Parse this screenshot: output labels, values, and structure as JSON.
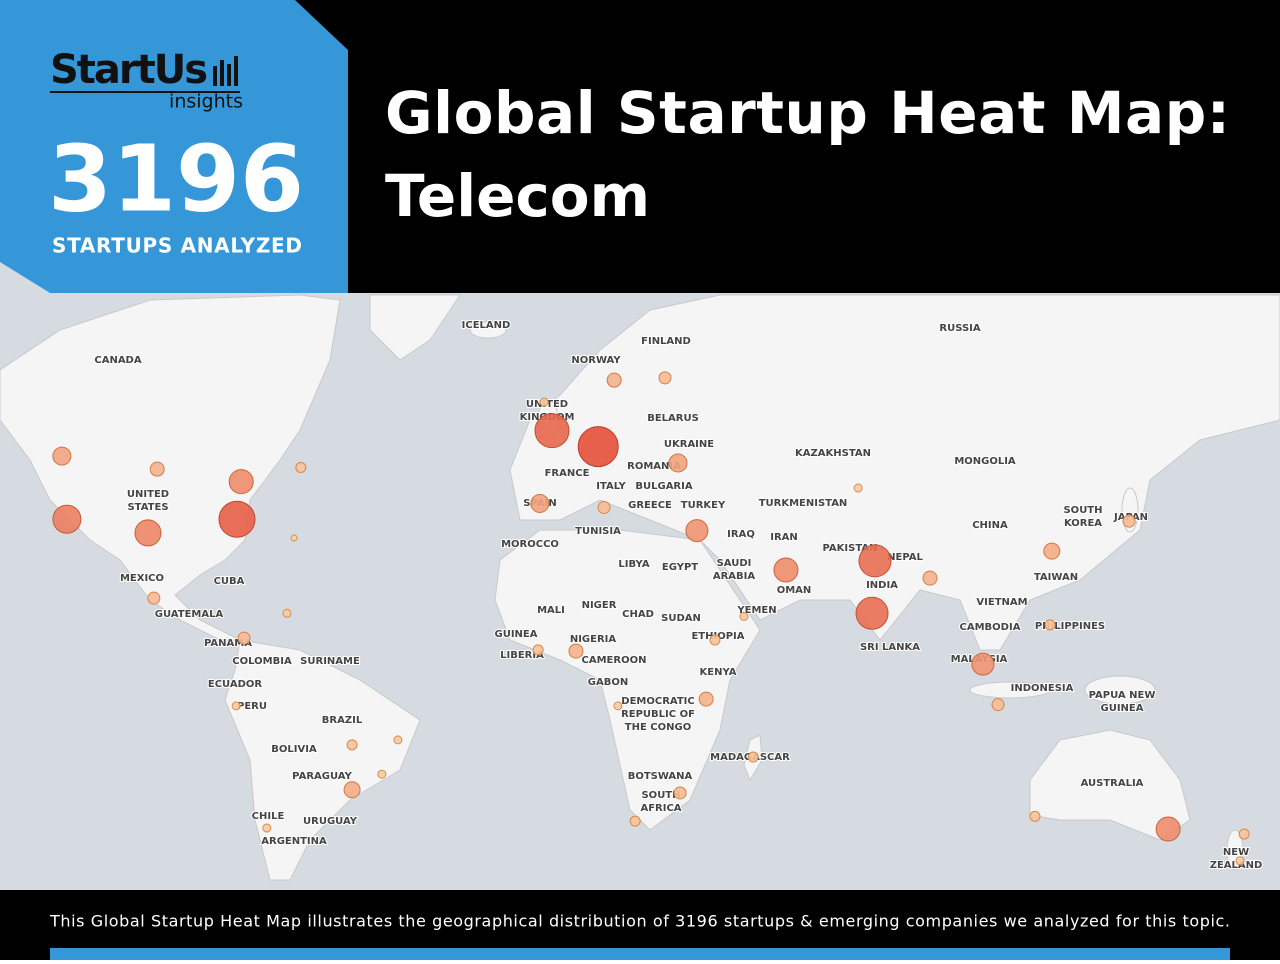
{
  "header": {
    "logo": "StartUs",
    "logo_sub": "insights",
    "count": "3196",
    "count_label": "STARTUPS ANALYZED",
    "title_lines": [
      "Global Startup Heat Map:",
      "Telecom"
    ]
  },
  "map": {
    "labels": [
      [
        "ICELAND"
      ],
      [
        "FINLAND"
      ],
      [
        "RUSSIA"
      ],
      [
        "CANADA"
      ],
      [
        "NORWAY"
      ],
      [
        "UNITED",
        "KINGDOM"
      ],
      [
        "BELARUS"
      ],
      [
        "UKRAINE"
      ],
      [
        "KAZAKHSTAN"
      ],
      [
        "MONGOLIA"
      ],
      [
        "FRANCE"
      ],
      [
        "ROMANIA"
      ],
      [
        "BULGARIA"
      ],
      [
        "ITALY"
      ],
      [
        "UNITED",
        "STATES"
      ],
      [
        "TURKMENISTAN"
      ],
      [
        "GREECE"
      ],
      [
        "TURKEY"
      ],
      [
        "SPAIN"
      ],
      [
        "SOUTH",
        "KOREA"
      ],
      [
        "JAPAN"
      ],
      [
        "CHINA"
      ],
      [
        "TUNISIA"
      ],
      [
        "IRAQ"
      ],
      [
        "IRAN"
      ],
      [
        "MOROCCO"
      ],
      [
        "PAKISTAN"
      ],
      [
        "NEPAL"
      ],
      [
        "LIBYA"
      ],
      [
        "EGYPT"
      ],
      [
        "SAUDI",
        "ARABIA"
      ],
      [
        "TAIWAN"
      ],
      [
        "INDIA"
      ],
      [
        "CUBA"
      ],
      [
        "MEXICO"
      ],
      [
        "OMAN"
      ],
      [
        "VIETNAM"
      ],
      [
        "NIGER"
      ],
      [
        "MALI"
      ],
      [
        "YEMEN"
      ],
      [
        "CHAD"
      ],
      [
        "GUATEMALA"
      ],
      [
        "SUDAN"
      ],
      [
        "CAMBODIA"
      ],
      [
        "PHILIPPINES"
      ],
      [
        "GUINEA"
      ],
      [
        "NIGERIA"
      ],
      [
        "ETHIOPIA"
      ],
      [
        "PANAMA"
      ],
      [
        "SRI LANKA"
      ],
      [
        "LIBERIA"
      ],
      [
        "CAMEROON"
      ],
      [
        "COLOMBIA"
      ],
      [
        "SURINAME"
      ],
      [
        "MALAYSIA"
      ],
      [
        "KENYA"
      ],
      [
        "GABON"
      ],
      [
        "ECUADOR"
      ],
      [
        "INDONESIA"
      ],
      [
        "PAPUA NEW",
        "GUINEA"
      ],
      [
        "DEMOCRATIC",
        "REPUBLIC OF",
        "THE CONGO"
      ],
      [
        "PERU"
      ],
      [
        "BRAZIL"
      ],
      [
        "BOLIVIA"
      ],
      [
        "MADAGASCAR"
      ],
      [
        "BOTSWANA"
      ],
      [
        "PARAGUAY"
      ],
      [
        "AUSTRALIA"
      ],
      [
        "SOUTH",
        "AFRICA"
      ],
      [
        "CHILE"
      ],
      [
        "URUGUAY"
      ],
      [
        "ARGENTINA"
      ],
      [
        "NEW",
        "ZEALAND"
      ]
    ],
    "bubbles": [
      {
        "lon": -116.7,
        "lat": 47.4,
        "size": 9
      },
      {
        "lon": -115.5,
        "lat": 35.4,
        "size": 14
      },
      {
        "lon": -94.0,
        "lat": 45.1,
        "size": 7
      },
      {
        "lon": -96.2,
        "lat": 32.5,
        "size": 13
      },
      {
        "lon": -74.0,
        "lat": 42.8,
        "size": 12
      },
      {
        "lon": -75.0,
        "lat": 35.4,
        "size": 18
      },
      {
        "lon": -59.8,
        "lat": 45.4,
        "size": 5
      },
      {
        "lon": -61.4,
        "lat": 31.4,
        "size": 3
      },
      {
        "lon": -94.8,
        "lat": 17.5,
        "size": 6
      },
      {
        "lon": -63.1,
        "lat": 13.8,
        "size": 4
      },
      {
        "lon": -73.3,
        "lat": 7.6,
        "size": 6
      },
      {
        "lon": -75.2,
        "lat": -9.6,
        "size": 4
      },
      {
        "lon": -47.6,
        "lat": -19.2,
        "size": 5
      },
      {
        "lon": -36.7,
        "lat": -18.0,
        "size": 4
      },
      {
        "lon": -40.5,
        "lat": -26.1,
        "size": 4
      },
      {
        "lon": -47.6,
        "lat": -29.6,
        "size": 8
      },
      {
        "lon": -67.9,
        "lat": -37.7,
        "size": 4
      },
      {
        "lon": -1.9,
        "lat": 55.9,
        "size": 4
      },
      {
        "lon": 0,
        "lat": 51.6,
        "size": 17
      },
      {
        "lon": 11.0,
        "lat": 49.0,
        "size": 20
      },
      {
        "lon": 14.8,
        "lat": 58.9,
        "size": 7
      },
      {
        "lon": 26.9,
        "lat": 59.2,
        "size": 6
      },
      {
        "lon": 30.0,
        "lat": 46.2,
        "size": 9
      },
      {
        "lon": -2.9,
        "lat": 38.6,
        "size": 9
      },
      {
        "lon": 12.4,
        "lat": 37.8,
        "size": 6
      },
      {
        "lon": 34.5,
        "lat": 33.0,
        "size": 11
      },
      {
        "lon": 55.7,
        "lat": 24.2,
        "size": 12
      },
      {
        "lon": 76.9,
        "lat": 26.3,
        "size": 16
      },
      {
        "lon": 76.2,
        "lat": 13.8,
        "size": 16
      },
      {
        "lon": 90.0,
        "lat": 22.3,
        "size": 7
      },
      {
        "lon": 72.9,
        "lat": 41.6,
        "size": 4
      },
      {
        "lon": 45.7,
        "lat": 13.0,
        "size": 4
      },
      {
        "lon": 38.8,
        "lat": 7.1,
        "size": 5
      },
      {
        "lon": 36.7,
        "lat": -7.9,
        "size": 7
      },
      {
        "lon": 15.7,
        "lat": -9.6,
        "size": 4
      },
      {
        "lon": 5.7,
        "lat": 4.3,
        "size": 7
      },
      {
        "lon": -3.3,
        "lat": 4.6,
        "size": 5
      },
      {
        "lon": 47.9,
        "lat": -22.1,
        "size": 5
      },
      {
        "lon": 30.5,
        "lat": -30.3,
        "size": 6
      },
      {
        "lon": 19.8,
        "lat": -36.3,
        "size": 5
      },
      {
        "lon": 119.0,
        "lat": 28.5,
        "size": 8
      },
      {
        "lon": 137.4,
        "lat": 35.0,
        "size": 6
      },
      {
        "lon": 118.6,
        "lat": 10.9,
        "size": 5
      },
      {
        "lon": 102.6,
        "lat": 1.0,
        "size": 11
      },
      {
        "lon": 106.2,
        "lat": -9.3,
        "size": 6
      },
      {
        "lon": 115.0,
        "lat": -35.3,
        "size": 5
      },
      {
        "lon": 146.7,
        "lat": -37.9,
        "size": 12
      },
      {
        "lon": 164.8,
        "lat": -38.9,
        "size": 5
      },
      {
        "lon": 163.8,
        "lat": -44.0,
        "size": 4
      }
    ]
  },
  "footer": {
    "caption": "This Global Startup Heat Map illustrates the geographical distribution of 3196 startups & emerging companies we analyzed for this topic."
  }
}
